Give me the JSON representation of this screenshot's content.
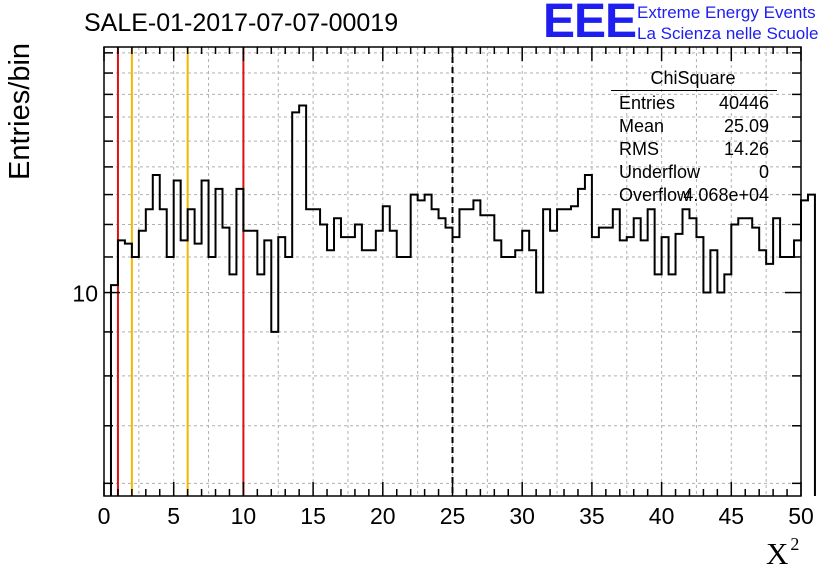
{
  "title": "SALE-01-2017-07-07-00019",
  "logo": {
    "mark": "EEE",
    "line1": "Extreme Energy Events",
    "line2": "La Scienza nelle Scuole",
    "color": "#1e1ef0"
  },
  "stats_box": {
    "title": "ChiSquare",
    "rows": [
      {
        "label": "Entries",
        "value": "40446"
      },
      {
        "label": "Mean",
        "value": "25.09"
      },
      {
        "label": "RMS",
        "value": "14.26"
      },
      {
        "label": "Underflow",
        "value": "0"
      },
      {
        "label": "Overflow",
        "value": "4.068e+04"
      }
    ]
  },
  "chart_data": {
    "type": "histogram",
    "title": "SALE-01-2017-07-07-00019",
    "xlabel": "X",
    "xlabel_superscript": "2",
    "ylabel": "Entries/bin",
    "xlim": [
      0,
      50
    ],
    "ylim": [
      5.8,
      19.3
    ],
    "yscale": "log",
    "grid": true,
    "x_ticks": [
      "0",
      "5",
      "10",
      "15",
      "20",
      "25",
      "30",
      "35",
      "40",
      "45",
      "50"
    ],
    "y_tick_labels": [
      {
        "value": 10,
        "label": "10"
      }
    ],
    "bin_width": 0.5,
    "bin_start": 0.5,
    "values": [
      10.2,
      11.5,
      11.4,
      11,
      11.8,
      12.5,
      13.7,
      12.5,
      11,
      13.5,
      11.5,
      12.5,
      11.4,
      13.5,
      11,
      13.2,
      11.9,
      10.5,
      13.2,
      11.8,
      11.8,
      10.5,
      11.5,
      9,
      11.6,
      11,
      16.2,
      16.5,
      12.5,
      12.5,
      12,
      11.2,
      12.2,
      11.6,
      11.6,
      12,
      11.2,
      11.2,
      11.8,
      12.6,
      11.8,
      11,
      11,
      13,
      12.8,
      13,
      12.5,
      12.2,
      11.9,
      11.6,
      12.5,
      12.5,
      12.8,
      12.3,
      12.3,
      11.5,
      11,
      11,
      11.2,
      11.8,
      11.2,
      10,
      12.5,
      11.8,
      12.5,
      12.5,
      12.6,
      13.2,
      13.7,
      11.6,
      11.9,
      11.9,
      12.5,
      11.5,
      11.6,
      12.2,
      11.5,
      12.5,
      10.5,
      11.6,
      10.5,
      11.7,
      12.5,
      12.2,
      11.6,
      10,
      11.2,
      10,
      10.5,
      12,
      12.2,
      12.2,
      11.9,
      11.2,
      10.8,
      12.2,
      11,
      11,
      11.5,
      12.8,
      13
    ],
    "vertical_lines": [
      {
        "x": 1,
        "color": "#dd1111",
        "style": "solid"
      },
      {
        "x": 2,
        "color": "#f0b800",
        "style": "solid"
      },
      {
        "x": 6,
        "color": "#f0b800",
        "style": "solid"
      },
      {
        "x": 10,
        "color": "#dd1111",
        "style": "solid"
      },
      {
        "x": 25,
        "color": "#000000",
        "style": "dashed"
      }
    ]
  }
}
